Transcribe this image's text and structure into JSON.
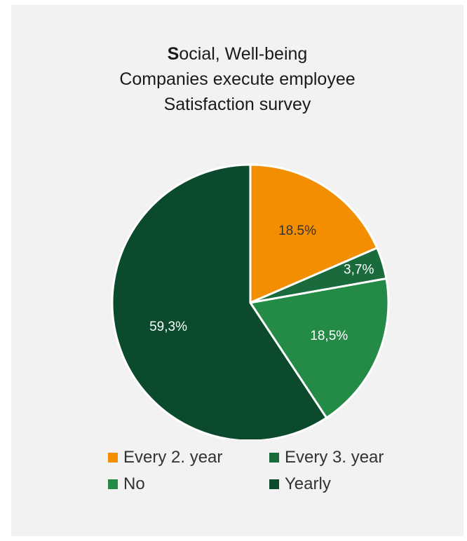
{
  "title": {
    "line1_first_letter": "S",
    "line1_rest": "ocial, Well-being",
    "line2": "Companies execute employee",
    "line3": "Satisfaction survey"
  },
  "chart_data": {
    "type": "pie",
    "slices": [
      {
        "name": "Every 2. year",
        "value": 18.5,
        "label": "18.5%",
        "color": "#f28e00",
        "label_color": "#333333"
      },
      {
        "name": "Every 3. year",
        "value": 3.7,
        "label": "3,7%",
        "color": "#1a6b3c",
        "label_color": "#ffffff"
      },
      {
        "name": "No",
        "value": 18.5,
        "label": "18,5%",
        "color": "#238b45",
        "label_color": "#ffffff"
      },
      {
        "name": "Yearly",
        "value": 59.3,
        "label": "59,3%",
        "color": "#0b4a2c",
        "label_color": "#ffffff"
      }
    ],
    "legend": "bottom",
    "start": "top",
    "direction": "clockwise"
  },
  "legend": {
    "items": [
      {
        "label": "Every 2. year",
        "color": "#f28e00"
      },
      {
        "label": "Every 3. year",
        "color": "#1a6b3c"
      },
      {
        "label": "No",
        "color": "#238b45"
      },
      {
        "label": "Yearly",
        "color": "#0b4a2c"
      }
    ]
  }
}
